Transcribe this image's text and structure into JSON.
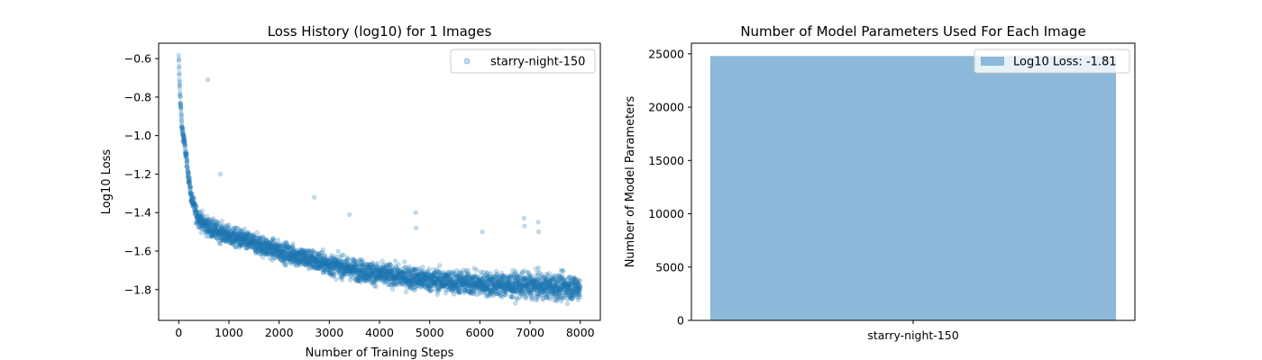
{
  "chart_data": [
    {
      "type": "scatter",
      "title": "Loss History (log10) for 1 Images",
      "xlabel": "Number of Training Steps",
      "ylabel": "Log10 Loss",
      "xlim": [
        -400,
        8400
      ],
      "ylim": [
        -1.96,
        -0.52
      ],
      "xticks": [
        0,
        1000,
        2000,
        3000,
        4000,
        5000,
        6000,
        7000,
        8000
      ],
      "xtick_labels": [
        "0",
        "1000",
        "2000",
        "3000",
        "4000",
        "5000",
        "6000",
        "7000",
        "8000"
      ],
      "yticks": [
        -1.8,
        -1.6,
        -1.4,
        -1.2,
        -1.0,
        -0.8,
        -0.6
      ],
      "ytick_labels": [
        "−1.8",
        "−1.6",
        "−1.4",
        "−1.2",
        "−1.0",
        "−0.8",
        "−0.6"
      ],
      "legend_position": "top-right",
      "series": [
        {
          "name": "starry-night-150",
          "color": "#1f77b4",
          "alpha": 0.25,
          "trend": {
            "x": [
              0,
              20,
              60,
              120,
              180,
              250,
              350,
              500,
              700,
              1000,
              1500,
              2000,
              3000,
              4000,
              5000,
              6000,
              7000,
              8000
            ],
            "y": [
              -0.6,
              -0.75,
              -0.95,
              -1.05,
              -1.18,
              -1.32,
              -1.41,
              -1.46,
              -1.49,
              -1.52,
              -1.56,
              -1.6,
              -1.67,
              -1.72,
              -1.75,
              -1.77,
              -1.78,
              -1.79
            ]
          },
          "outliers": {
            "x": [
              580,
              830,
              2700,
              3400,
              4720,
              4730,
              6050,
              6880,
              6890,
              7160,
              7170
            ],
            "y": [
              -0.71,
              -1.2,
              -1.32,
              -1.41,
              -1.4,
              -1.48,
              -1.5,
              -1.43,
              -1.47,
              -1.45,
              -1.5
            ]
          }
        }
      ]
    },
    {
      "type": "bar",
      "title": "Number of Model Parameters Used For Each Image",
      "xlabel": "",
      "ylabel": "Number of Model Parameters",
      "categories": [
        "starry-night-150"
      ],
      "values": [
        24800
      ],
      "ylim": [
        0,
        26000
      ],
      "yticks": [
        0,
        5000,
        10000,
        15000,
        20000,
        25000
      ],
      "ytick_labels": [
        "0",
        "5000",
        "10000",
        "15000",
        "20000",
        "25000"
      ],
      "color": "#8cb9d9",
      "legend_label": "Log10 Loss: -1.81",
      "legend_position": "top-right"
    }
  ]
}
